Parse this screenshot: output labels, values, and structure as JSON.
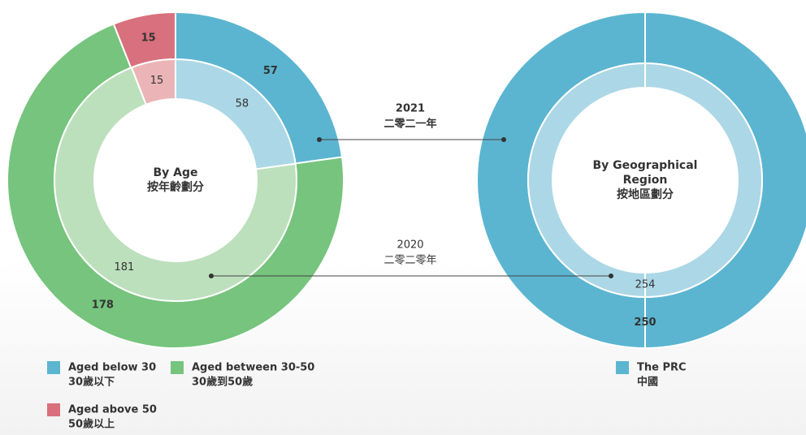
{
  "chart_data": [
    {
      "type": "donut",
      "title": [
        "By Age",
        "按年齡劃分"
      ],
      "categories": [
        "Aged below 30",
        "Aged between 30-50",
        "Aged above 50"
      ],
      "categories_zh": [
        "30歲以下",
        "30歲到50歲",
        "50歲以上"
      ],
      "series": [
        {
          "name": "2021",
          "name_zh": "二零二一年",
          "values": [
            57,
            178,
            15
          ],
          "colors": [
            "#5bb5d0",
            "#76c47d",
            "#d9707d"
          ]
        },
        {
          "name": "2020",
          "name_zh": "二零二零年",
          "values": [
            58,
            181,
            15
          ],
          "colors": [
            "#acd7e6",
            "#bce0bc",
            "#ebb5b8"
          ]
        }
      ]
    },
    {
      "type": "donut",
      "title": [
        "By Geographical",
        "Region",
        "按地區劃分"
      ],
      "categories": [
        "The PRC"
      ],
      "categories_zh": [
        "中國"
      ],
      "series": [
        {
          "values": [
            250
          ],
          "colors": [
            "#5bb5d0"
          ]
        },
        {
          "values": [
            254
          ],
          "colors": [
            "#acd7e6"
          ]
        }
      ]
    }
  ]
}
